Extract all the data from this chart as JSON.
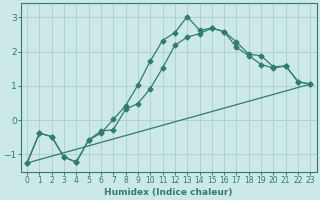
{
  "xlabel": "Humidex (Indice chaleur)",
  "background_color": "#cce8e8",
  "grid_color": "#aacfcf",
  "line_color": "#2e7d6e",
  "xlim": [
    -0.5,
    23.5
  ],
  "ylim": [
    -1.5,
    3.4
  ],
  "xticks": [
    0,
    1,
    2,
    3,
    4,
    5,
    6,
    7,
    8,
    9,
    10,
    11,
    12,
    13,
    14,
    15,
    16,
    17,
    18,
    19,
    20,
    21,
    22,
    23
  ],
  "yticks": [
    -1,
    0,
    1,
    2,
    3
  ],
  "line1_x": [
    0,
    1,
    2,
    3,
    4,
    5,
    6,
    7,
    8,
    9,
    10,
    11,
    12,
    13,
    14,
    15,
    16,
    17,
    18,
    19,
    20,
    21,
    22,
    23
  ],
  "line1_y": [
    -1.25,
    -0.38,
    -0.48,
    -1.08,
    -1.22,
    -0.58,
    -0.38,
    0.02,
    0.42,
    1.02,
    1.72,
    2.32,
    2.55,
    3.02,
    2.62,
    2.68,
    2.58,
    2.28,
    1.92,
    1.88,
    1.55,
    1.58,
    1.12,
    1.05
  ],
  "line2_x": [
    0,
    1,
    2,
    3,
    4,
    5,
    6,
    7,
    8,
    9,
    10,
    11,
    12,
    13,
    14,
    15,
    16,
    17,
    18,
    19,
    20,
    21,
    22,
    23
  ],
  "line2_y": [
    -1.25,
    -0.38,
    -0.48,
    -1.08,
    -1.22,
    -0.58,
    -0.32,
    -0.28,
    0.32,
    0.48,
    0.92,
    1.52,
    2.18,
    2.42,
    2.52,
    2.68,
    2.58,
    2.12,
    1.88,
    1.62,
    1.52,
    1.58,
    1.12,
    1.05
  ],
  "line3_x": [
    0,
    23
  ],
  "line3_y": [
    -1.25,
    1.05
  ]
}
